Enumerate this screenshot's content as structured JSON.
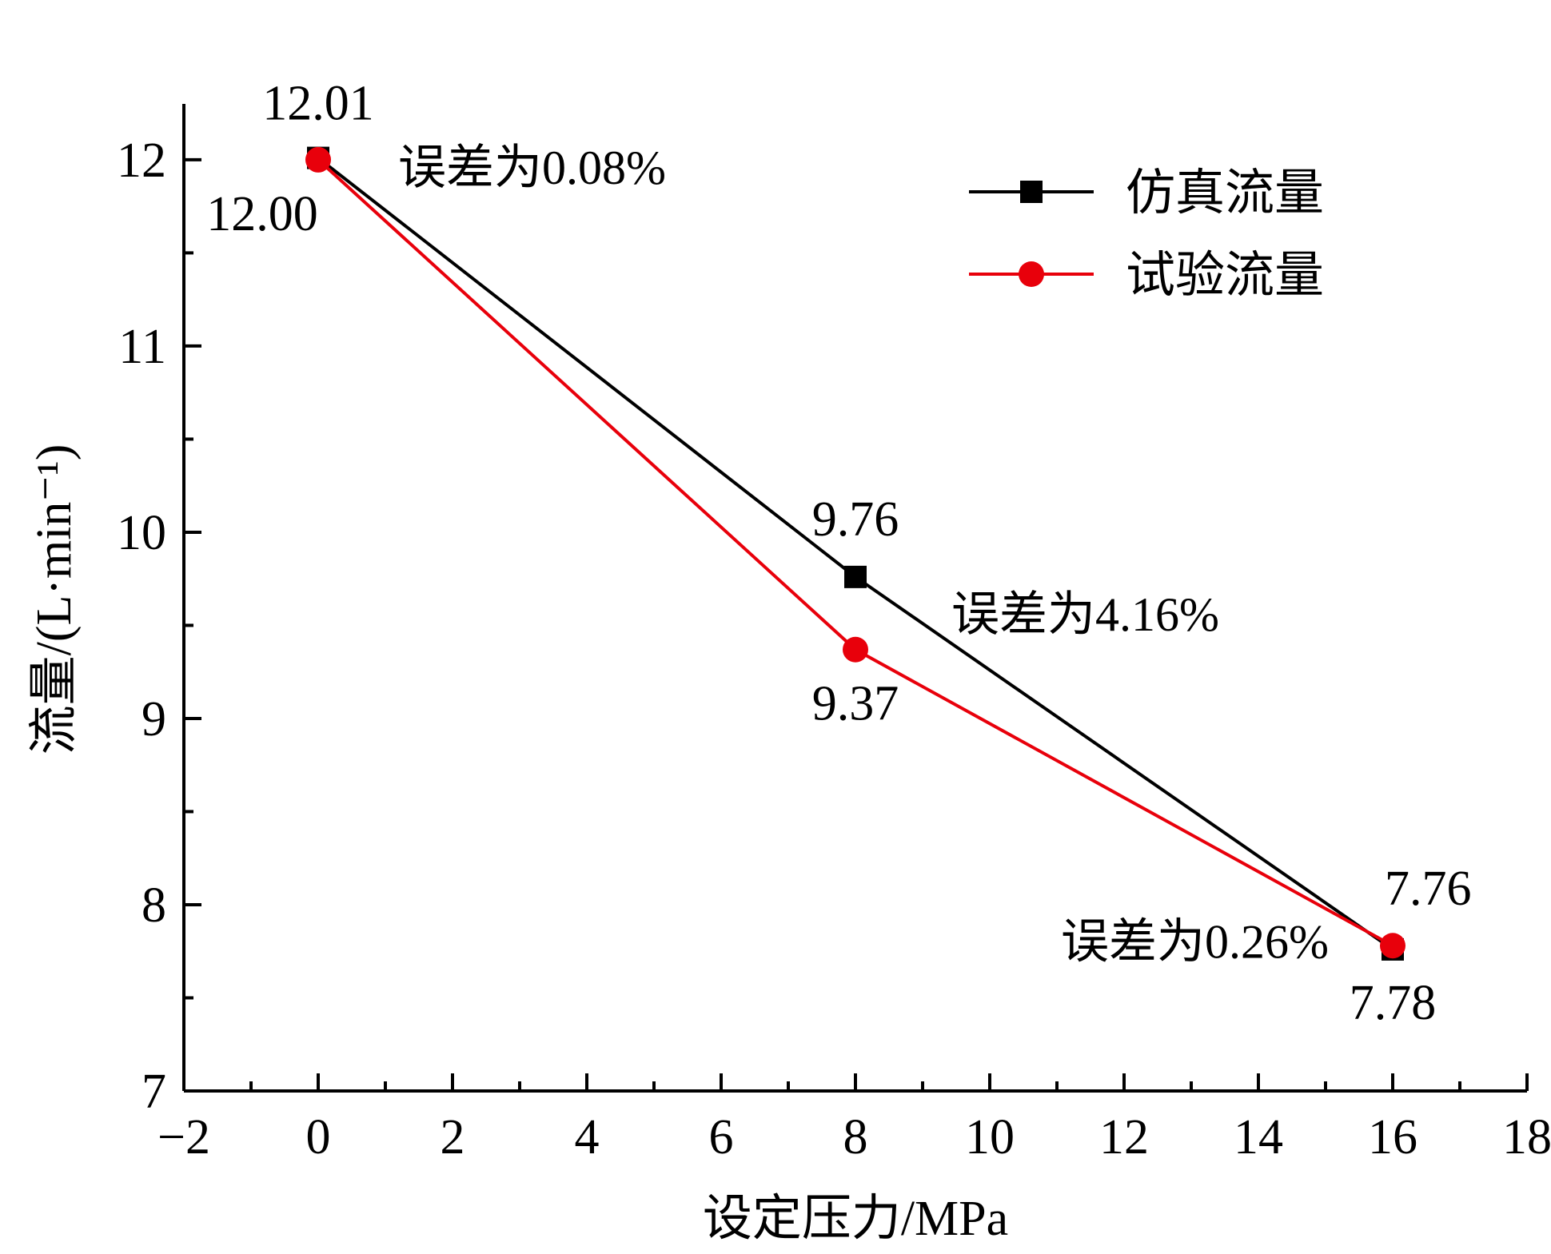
{
  "chart_data": {
    "type": "line",
    "xlabel": "设定压力/MPa",
    "ylabel": "流量/(L·min⁻¹)",
    "xlim": [
      -2,
      18
    ],
    "ylim": [
      7,
      12.3
    ],
    "x_major_ticks": [
      -2,
      0,
      2,
      4,
      6,
      8,
      10,
      12,
      14,
      16,
      18
    ],
    "x_tick_labels": [
      "−2",
      "0",
      "2",
      "4",
      "6",
      "8",
      "10",
      "12",
      "14",
      "16",
      "18"
    ],
    "y_major_ticks": [
      7,
      8,
      9,
      10,
      11,
      12
    ],
    "y_tick_labels": [
      "7",
      "8",
      "9",
      "10",
      "11",
      "12"
    ],
    "grid": false,
    "legend_position": "top-right",
    "series": [
      {
        "name": "仿真流量",
        "color": "#000000",
        "marker": "square",
        "x": [
          0,
          8,
          16
        ],
        "y": [
          12.01,
          9.76,
          7.76
        ],
        "labels": [
          "12.01",
          "9.76",
          "7.76"
        ]
      },
      {
        "name": "试验流量",
        "color": "#e8000b",
        "marker": "circle",
        "x": [
          0,
          8,
          16
        ],
        "y": [
          12.0,
          9.37,
          7.78
        ],
        "labels": [
          "12.00",
          "9.37",
          "7.78"
        ]
      }
    ],
    "annotations": [
      {
        "text": "误差为0.08%",
        "x": 0,
        "y": 12.0
      },
      {
        "text": "误差为4.16%",
        "x": 8,
        "y": 9.6
      },
      {
        "text": "误差为0.26%",
        "x": 16,
        "y": 7.8
      }
    ]
  }
}
